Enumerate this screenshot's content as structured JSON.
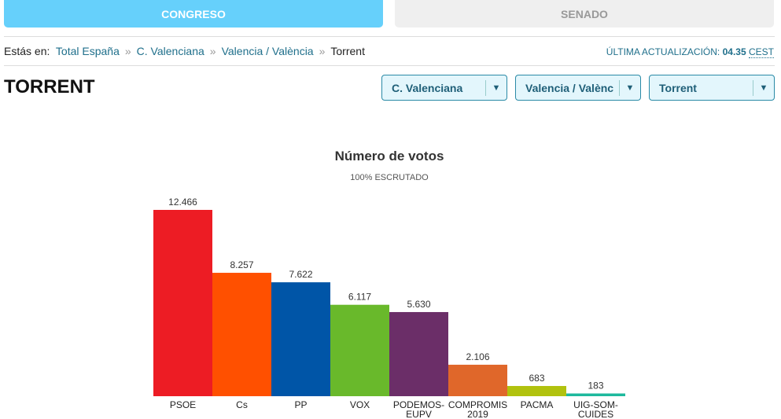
{
  "tabs": {
    "congreso": "CONGRESO",
    "senado": "SENADO"
  },
  "breadcrumb": {
    "prefix": "Estás en:",
    "items": [
      "Total España",
      "C. Valenciana",
      "Valencia / València"
    ],
    "current": "Torrent",
    "separator": "»"
  },
  "update": {
    "label": "ÚLTIMA ACTUALIZACIÓN:",
    "time": "04.35",
    "zone": "CEST"
  },
  "title": "TORRENT",
  "selects": [
    "C. Valenciana",
    "Valencia / Valènc",
    "Torrent"
  ],
  "chart_data": {
    "type": "bar",
    "title": "Número de votos",
    "subtitle": "100% ESCRUTADO",
    "categories": [
      [
        "PSOE"
      ],
      [
        "Cs"
      ],
      [
        "PP"
      ],
      [
        "VOX"
      ],
      [
        "PODEMOS-",
        "EUPV"
      ],
      [
        "COMPROMIS",
        "2019"
      ],
      [
        "PACMA"
      ],
      [
        "UIG-SOM-",
        "CUIDES"
      ]
    ],
    "values": [
      12466,
      8257,
      7622,
      6117,
      5630,
      2106,
      683,
      183
    ],
    "labels": [
      "12.466",
      "8.257",
      "7.622",
      "6.117",
      "5.630",
      "2.106",
      "683",
      "183"
    ],
    "colors": [
      "#ed1c24",
      "#ff5000",
      "#0055a7",
      "#69b92b",
      "#6b2e68",
      "#e0672a",
      "#b1c20e",
      "#1eb99d"
    ]
  }
}
